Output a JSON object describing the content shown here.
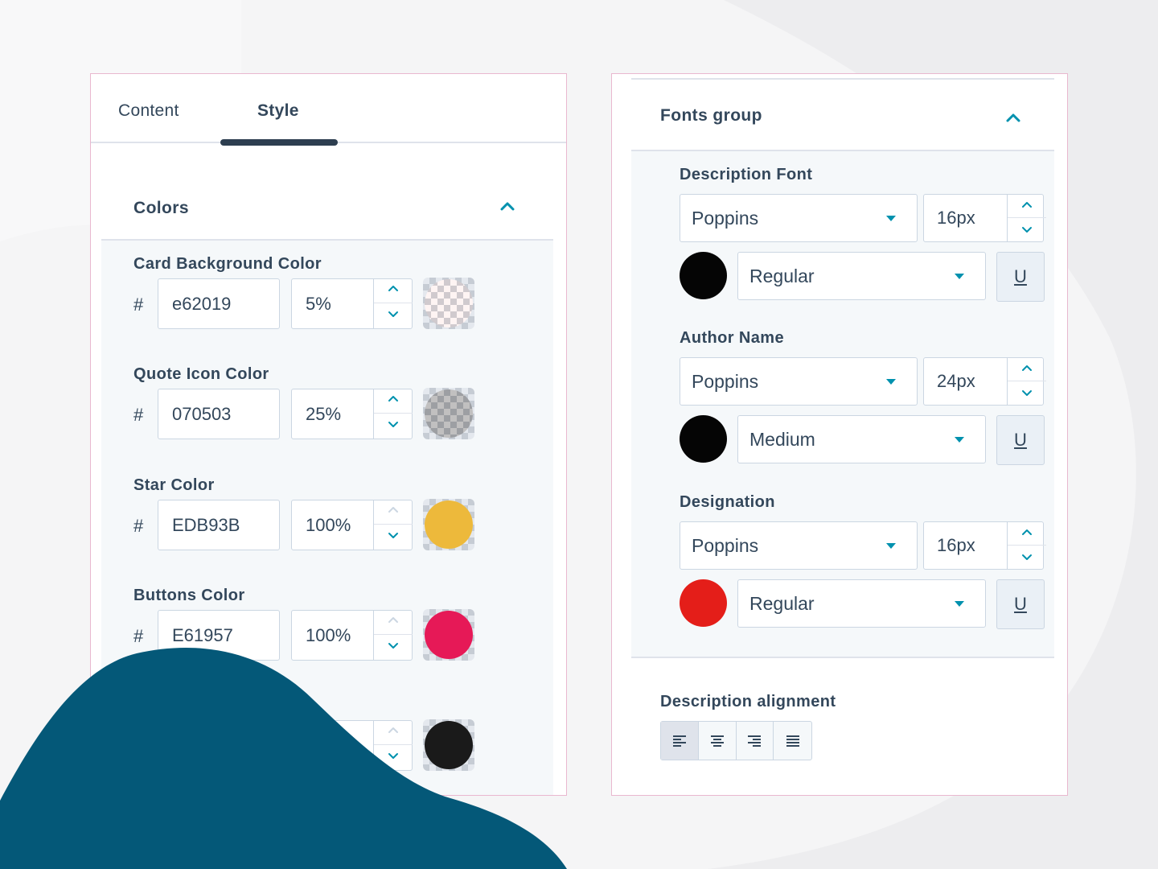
{
  "tabs": {
    "content": "Content",
    "style": "Style"
  },
  "colors_section": {
    "title": "Colors",
    "fields": [
      {
        "label": "Card Background Color",
        "hash": "#",
        "hex": "e62019",
        "opacity": "5%",
        "color": "#e62019",
        "alpha": 0.05
      },
      {
        "label": "Quote Icon Color",
        "hash": "#",
        "hex": "070503",
        "opacity": "25%",
        "color": "#070503",
        "alpha": 0.25
      },
      {
        "label": "Star Color",
        "hash": "#",
        "hex": "EDB93B",
        "opacity": "100%",
        "color": "#EDB93B",
        "alpha": 1
      },
      {
        "label": "Buttons Color",
        "hash": "#",
        "hex": "E61957",
        "opacity": "100%",
        "color": "#E61957",
        "alpha": 1
      },
      {
        "label": "",
        "hash": "",
        "hex": "",
        "opacity": "",
        "color": "#1a1a1a",
        "alpha": 1
      }
    ]
  },
  "fonts_section": {
    "title": "Fonts group",
    "groups": [
      {
        "label": "Description Font",
        "font": "Poppins",
        "size": "16px",
        "weight": "Regular",
        "color": "#050505",
        "underline": "U"
      },
      {
        "label": "Author Name",
        "font": "Poppins",
        "size": "24px",
        "weight": "Medium",
        "color": "#050505",
        "underline": "U"
      },
      {
        "label": "Designation",
        "font": "Poppins",
        "size": "16px",
        "weight": "Regular",
        "color": "#e41e19",
        "underline": "U"
      }
    ]
  },
  "alignment": {
    "label": "Description alignment",
    "options": [
      "align-left",
      "align-center",
      "align-right",
      "align-justify"
    ],
    "selected": "align-left"
  },
  "theme": {
    "accent": "#0091ae",
    "blob": "#045878",
    "text": "#33475b"
  }
}
